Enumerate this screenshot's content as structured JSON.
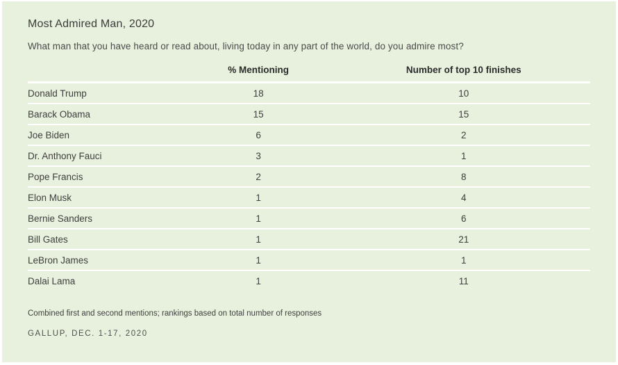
{
  "page": {
    "title": "Most Admired Man, 2020",
    "subtitle": "What man that you have heard or read about, living today in any part of the world, do you admire most?",
    "footnote": "Combined first and second mentions; rankings based on total number of responses",
    "source": "GALLUP, DEC. 1-17, 2020",
    "colors": {
      "panel_background": "#e8f1dd",
      "row_divider": "#ffffff",
      "text": "#3e3e3e"
    }
  },
  "chart_data": {
    "type": "table",
    "title": "Most Admired Man, 2020",
    "columns": [
      "",
      "% Mentioning",
      "Number of top 10 finishes"
    ],
    "rows": [
      {
        "name": "Donald Trump",
        "values": [
          "18",
          "10"
        ]
      },
      {
        "name": "Barack Obama",
        "values": [
          "15",
          "15"
        ]
      },
      {
        "name": "Joe Biden",
        "values": [
          "6",
          "2"
        ]
      },
      {
        "name": "Dr. Anthony Fauci",
        "values": [
          "3",
          "1"
        ]
      },
      {
        "name": "Pope Francis",
        "values": [
          "2",
          "8"
        ]
      },
      {
        "name": "Elon Musk",
        "values": [
          "1",
          "4"
        ]
      },
      {
        "name": "Bernie Sanders",
        "values": [
          "1",
          "6"
        ]
      },
      {
        "name": "Bill Gates",
        "values": [
          "1",
          "21"
        ]
      },
      {
        "name": "LeBron James",
        "values": [
          "1",
          "1"
        ]
      },
      {
        "name": "Dalai Lama",
        "values": [
          "1",
          "11"
        ]
      }
    ]
  }
}
